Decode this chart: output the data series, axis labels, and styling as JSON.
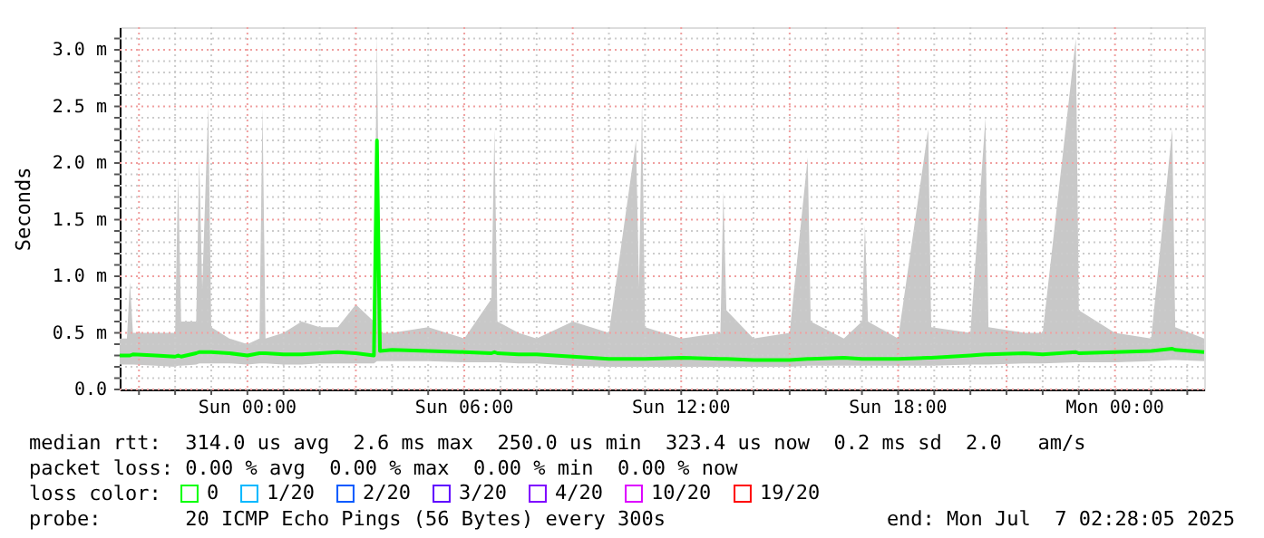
{
  "chart_data": {
    "type": "line",
    "ylabel": "Seconds",
    "legend_title": "loss color:",
    "legend": "bottom",
    "grid": true,
    "marker": "none",
    "line_style": "solid",
    "xlim": [
      "2025-07-05T20:28",
      "2025-07-07T02:28"
    ],
    "xticks": [
      {
        "value": "2025-07-05T21:00",
        "label": null
      },
      {
        "value": "2025-07-05T22:00",
        "label": null
      },
      {
        "value": "2025-07-05T23:00",
        "label": null
      },
      {
        "value": "2025-07-06T00:00",
        "label": "Sun 00:00"
      },
      {
        "value": "2025-07-06T01:00",
        "label": null
      },
      {
        "value": "2025-07-06T02:00",
        "label": null
      },
      {
        "value": "2025-07-06T03:00",
        "label": null
      },
      {
        "value": "2025-07-06T04:00",
        "label": null
      },
      {
        "value": "2025-07-06T05:00",
        "label": null
      },
      {
        "value": "2025-07-06T06:00",
        "label": "Sun 06:00"
      },
      {
        "value": "2025-07-06T07:00",
        "label": null
      },
      {
        "value": "2025-07-06T08:00",
        "label": null
      },
      {
        "value": "2025-07-06T09:00",
        "label": null
      },
      {
        "value": "2025-07-06T10:00",
        "label": null
      },
      {
        "value": "2025-07-06T11:00",
        "label": null
      },
      {
        "value": "2025-07-06T12:00",
        "label": "Sun 12:00"
      },
      {
        "value": "2025-07-06T13:00",
        "label": null
      },
      {
        "value": "2025-07-06T14:00",
        "label": null
      },
      {
        "value": "2025-07-06T15:00",
        "label": null
      },
      {
        "value": "2025-07-06T16:00",
        "label": null
      },
      {
        "value": "2025-07-06T17:00",
        "label": null
      },
      {
        "value": "2025-07-06T18:00",
        "label": "Sun 18:00"
      },
      {
        "value": "2025-07-06T19:00",
        "label": null
      },
      {
        "value": "2025-07-06T20:00",
        "label": null
      },
      {
        "value": "2025-07-06T21:00",
        "label": null
      },
      {
        "value": "2025-07-06T22:00",
        "label": null
      },
      {
        "value": "2025-07-06T23:00",
        "label": null
      },
      {
        "value": "2025-07-07T00:00",
        "label": "Mon 00:00"
      },
      {
        "value": "2025-07-07T01:00",
        "label": null
      },
      {
        "value": "2025-07-07T02:00",
        "label": null
      }
    ],
    "ylim": [
      0,
      3.2
    ],
    "yticks": [
      {
        "value": 0,
        "label": "0.0"
      },
      {
        "value": 0.1,
        "label": null
      },
      {
        "value": 0.2,
        "label": null
      },
      {
        "value": 0.3,
        "label": null
      },
      {
        "value": 0.4,
        "label": null
      },
      {
        "value": 0.5,
        "label": "0.5 m"
      },
      {
        "value": 0.6,
        "label": null
      },
      {
        "value": 0.7,
        "label": null
      },
      {
        "value": 0.8,
        "label": null
      },
      {
        "value": 0.9,
        "label": null
      },
      {
        "value": 1.0,
        "label": "1.0 m"
      },
      {
        "value": 1.1,
        "label": null
      },
      {
        "value": 1.2,
        "label": null
      },
      {
        "value": 1.3,
        "label": null
      },
      {
        "value": 1.4,
        "label": null
      },
      {
        "value": 1.5,
        "label": "1.5 m"
      },
      {
        "value": 1.6,
        "label": null
      },
      {
        "value": 1.7,
        "label": null
      },
      {
        "value": 1.8,
        "label": null
      },
      {
        "value": 1.9,
        "label": null
      },
      {
        "value": 2.0,
        "label": "2.0 m"
      },
      {
        "value": 2.1,
        "label": null
      },
      {
        "value": 2.2,
        "label": null
      },
      {
        "value": 2.3,
        "label": null
      },
      {
        "value": 2.4,
        "label": null
      },
      {
        "value": 2.5,
        "label": "2.5 m"
      },
      {
        "value": 2.6,
        "label": null
      },
      {
        "value": 2.7,
        "label": null
      },
      {
        "value": 2.8,
        "label": null
      },
      {
        "value": 2.9,
        "label": null
      },
      {
        "value": 3.0,
        "label": "3.0 m"
      },
      {
        "value": 3.1,
        "label": null
      }
    ],
    "series": [
      {
        "name": "0",
        "color": "#00ff00",
        "x": [
          "2025-07-05T20:28",
          "2025-07-05T20:40",
          "2025-07-05T20:45",
          "2025-07-05T20:50",
          "2025-07-05T21:28",
          "2025-07-05T22:00",
          "2025-07-05T22:05",
          "2025-07-05T22:10",
          "2025-07-05T22:35",
          "2025-07-05T22:40",
          "2025-07-05T22:45",
          "2025-07-05T22:55",
          "2025-07-05T23:00",
          "2025-07-05T23:30",
          "2025-07-06T00:00",
          "2025-07-06T00:20",
          "2025-07-06T00:25",
          "2025-07-06T00:30",
          "2025-07-06T01:00",
          "2025-07-06T01:30",
          "2025-07-06T02:00",
          "2025-07-06T02:30",
          "2025-07-06T03:00",
          "2025-07-06T03:30",
          "2025-07-06T03:35",
          "2025-07-06T03:40",
          "2025-07-06T04:00",
          "2025-07-06T05:00",
          "2025-07-06T06:00",
          "2025-07-06T06:45",
          "2025-07-06T06:50",
          "2025-07-06T06:55",
          "2025-07-06T07:30",
          "2025-07-06T08:00",
          "2025-07-06T09:00",
          "2025-07-06T10:00",
          "2025-07-06T10:45",
          "2025-07-06T10:50",
          "2025-07-06T10:55",
          "2025-07-06T11:00",
          "2025-07-06T12:00",
          "2025-07-06T13:05",
          "2025-07-06T13:10",
          "2025-07-06T13:15",
          "2025-07-06T14:00",
          "2025-07-06T15:00",
          "2025-07-06T15:30",
          "2025-07-06T15:35",
          "2025-07-06T16:30",
          "2025-07-06T17:00",
          "2025-07-06T17:05",
          "2025-07-06T17:10",
          "2025-07-06T18:00",
          "2025-07-06T18:50",
          "2025-07-06T18:55",
          "2025-07-06T20:00",
          "2025-07-06T20:25",
          "2025-07-06T20:30",
          "2025-07-06T21:30",
          "2025-07-06T22:00",
          "2025-07-06T22:55",
          "2025-07-06T23:00",
          "2025-07-07T00:00",
          "2025-07-07T01:00",
          "2025-07-07T01:35",
          "2025-07-07T01:40",
          "2025-07-07T02:28"
        ],
        "values": [
          0.3,
          0.3,
          0.3,
          0.31,
          0.3,
          0.29,
          0.3,
          0.29,
          0.32,
          0.33,
          0.33,
          0.33,
          0.33,
          0.32,
          0.3,
          0.32,
          0.32,
          0.32,
          0.31,
          0.31,
          0.32,
          0.33,
          0.32,
          0.3,
          2.2,
          0.34,
          0.35,
          0.34,
          0.33,
          0.32,
          0.33,
          0.32,
          0.31,
          0.31,
          0.29,
          0.27,
          0.27,
          0.27,
          0.27,
          0.27,
          0.28,
          0.27,
          0.27,
          0.27,
          0.26,
          0.26,
          0.27,
          0.27,
          0.28,
          0.27,
          0.27,
          0.27,
          0.27,
          0.28,
          0.28,
          0.3,
          0.31,
          0.31,
          0.32,
          0.31,
          0.33,
          0.32,
          0.33,
          0.34,
          0.36,
          0.35,
          0.33
        ],
        "lower": [
          0.22,
          0.22,
          0.22,
          0.22,
          0.21,
          0.2,
          0.21,
          0.21,
          0.22,
          0.23,
          0.23,
          0.23,
          0.23,
          0.23,
          0.22,
          0.23,
          0.23,
          0.23,
          0.22,
          0.22,
          0.23,
          0.23,
          0.23,
          0.23,
          0.25,
          0.25,
          0.25,
          0.25,
          0.24,
          0.24,
          0.24,
          0.24,
          0.23,
          0.23,
          0.21,
          0.2,
          0.2,
          0.2,
          0.2,
          0.2,
          0.2,
          0.2,
          0.2,
          0.2,
          0.2,
          0.2,
          0.21,
          0.21,
          0.21,
          0.21,
          0.21,
          0.21,
          0.21,
          0.21,
          0.21,
          0.22,
          0.22,
          0.22,
          0.23,
          0.23,
          0.24,
          0.24,
          0.24,
          0.25,
          0.26,
          0.26,
          0.25
        ],
        "upper": [
          0.45,
          0.45,
          0.95,
          0.5,
          0.5,
          0.5,
          1.9,
          0.6,
          0.6,
          2.05,
          0.9,
          2.5,
          0.55,
          0.45,
          0.4,
          0.45,
          2.5,
          0.45,
          0.5,
          0.6,
          0.55,
          0.55,
          0.75,
          0.6,
          3.15,
          0.5,
          0.5,
          0.55,
          0.45,
          0.8,
          2.3,
          0.6,
          0.5,
          0.45,
          0.6,
          0.5,
          2.2,
          0.9,
          2.55,
          0.55,
          0.45,
          0.5,
          1.75,
          0.7,
          0.45,
          0.5,
          2.05,
          0.6,
          0.45,
          0.6,
          1.45,
          0.6,
          0.45,
          2.3,
          0.55,
          0.5,
          2.4,
          0.55,
          0.5,
          0.5,
          3.1,
          0.7,
          0.5,
          0.45,
          2.3,
          0.55,
          0.45
        ]
      },
      {
        "name": "1/20",
        "color": "#00b8ff"
      },
      {
        "name": "2/20",
        "color": "#0059ff"
      },
      {
        "name": "3/20",
        "color": "#5e00ff"
      },
      {
        "name": "4/20",
        "color": "#7e00ff"
      },
      {
        "name": "10/20",
        "color": "#dd00ff"
      },
      {
        "name": "19/20",
        "color": "#ff0000"
      }
    ],
    "annotations": [
      "median rtt:  314.0 us avg  2.6 ms max  250.0 us min  323.4 us now  0.2 ms sd  2.0   am/s",
      "packet loss: 0.00 % avg  0.00 % max  0.00 % min  0.00 % now",
      "probe:       20 ICMP Echo Pings (56 Bytes) every 300s",
      "end: Mon Jul  7 02:28:05 2025"
    ]
  }
}
